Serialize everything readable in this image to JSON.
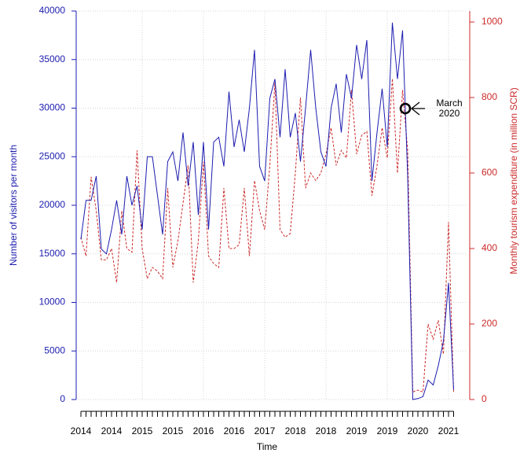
{
  "chart_data": {
    "type": "line",
    "x_label": "Time",
    "y_label": "Number of visitors per month",
    "y2_label": "Monthly tourism expenditure (in million SCR)",
    "categories": [
      "2014",
      null,
      null,
      null,
      null,
      null,
      "2014",
      null,
      null,
      null,
      null,
      null,
      "2015",
      null,
      null,
      null,
      null,
      null,
      "2015",
      null,
      null,
      null,
      null,
      null,
      "2016",
      null,
      null,
      null,
      null,
      null,
      "2016",
      null,
      null,
      null,
      null,
      null,
      "2017",
      null,
      null,
      null,
      null,
      null,
      "2018",
      null,
      null,
      null,
      null,
      null,
      "2018",
      null,
      null,
      null,
      null,
      null,
      "2019",
      null,
      null,
      null,
      null,
      null,
      "2019",
      null,
      null,
      null,
      null,
      null,
      "2020",
      null,
      null,
      null,
      null,
      null,
      "2021",
      null
    ],
    "series": [
      {
        "name": "Number of visitors per month",
        "color": "#1c1cb0",
        "dash": "solid",
        "values": [
          16500,
          20500,
          20500,
          23000,
          15500,
          15000,
          17500,
          20500,
          17000,
          23000,
          20000,
          22000,
          17500,
          25000,
          25000,
          21000,
          17000,
          24500,
          25500,
          22500,
          27500,
          22000,
          26500,
          19000,
          26500,
          17500,
          26500,
          27000,
          24000,
          31700,
          26000,
          28800,
          25500,
          30000,
          36000,
          24000,
          22500,
          31000,
          33000,
          27000,
          34000,
          27000,
          29500,
          24500,
          30000,
          36000,
          30000,
          25500,
          24000,
          30000,
          32500,
          27500,
          33500,
          31000,
          36500,
          33000,
          37000,
          22500,
          27500,
          32000,
          26000,
          38800,
          33000,
          38000,
          23000,
          0,
          100,
          300,
          2000,
          1500,
          3500,
          6000,
          12000,
          1000
        ]
      },
      {
        "name": "Monthly tourism expenditure (in million SCR)",
        "color": "#cc2a2a",
        "dash": "dashed",
        "axis": "y2",
        "values": [
          430,
          380,
          590,
          500,
          370,
          370,
          400,
          310,
          500,
          400,
          390,
          660,
          400,
          320,
          350,
          340,
          320,
          560,
          350,
          420,
          520,
          620,
          310,
          420,
          630,
          380,
          360,
          350,
          560,
          400,
          400,
          410,
          560,
          380,
          580,
          500,
          450,
          620,
          840,
          450,
          430,
          440,
          600,
          800,
          560,
          600,
          580,
          600,
          650,
          720,
          620,
          660,
          640,
          820,
          650,
          700,
          710,
          540,
          620,
          720,
          640,
          850,
          600,
          820,
          660,
          20,
          25,
          20,
          200,
          160,
          210,
          120,
          470,
          20
        ]
      }
    ],
    "ylim": [
      0,
      40000
    ],
    "yticks": [
      0,
      5000,
      10000,
      15000,
      20000,
      25000,
      30000,
      35000,
      40000
    ],
    "y2lim": [
      0,
      1000
    ],
    "y2ticks": [
      0,
      200,
      400,
      600,
      800,
      1000
    ],
    "grid": true,
    "annotation": {
      "lines": [
        "March",
        "2020"
      ]
    }
  }
}
